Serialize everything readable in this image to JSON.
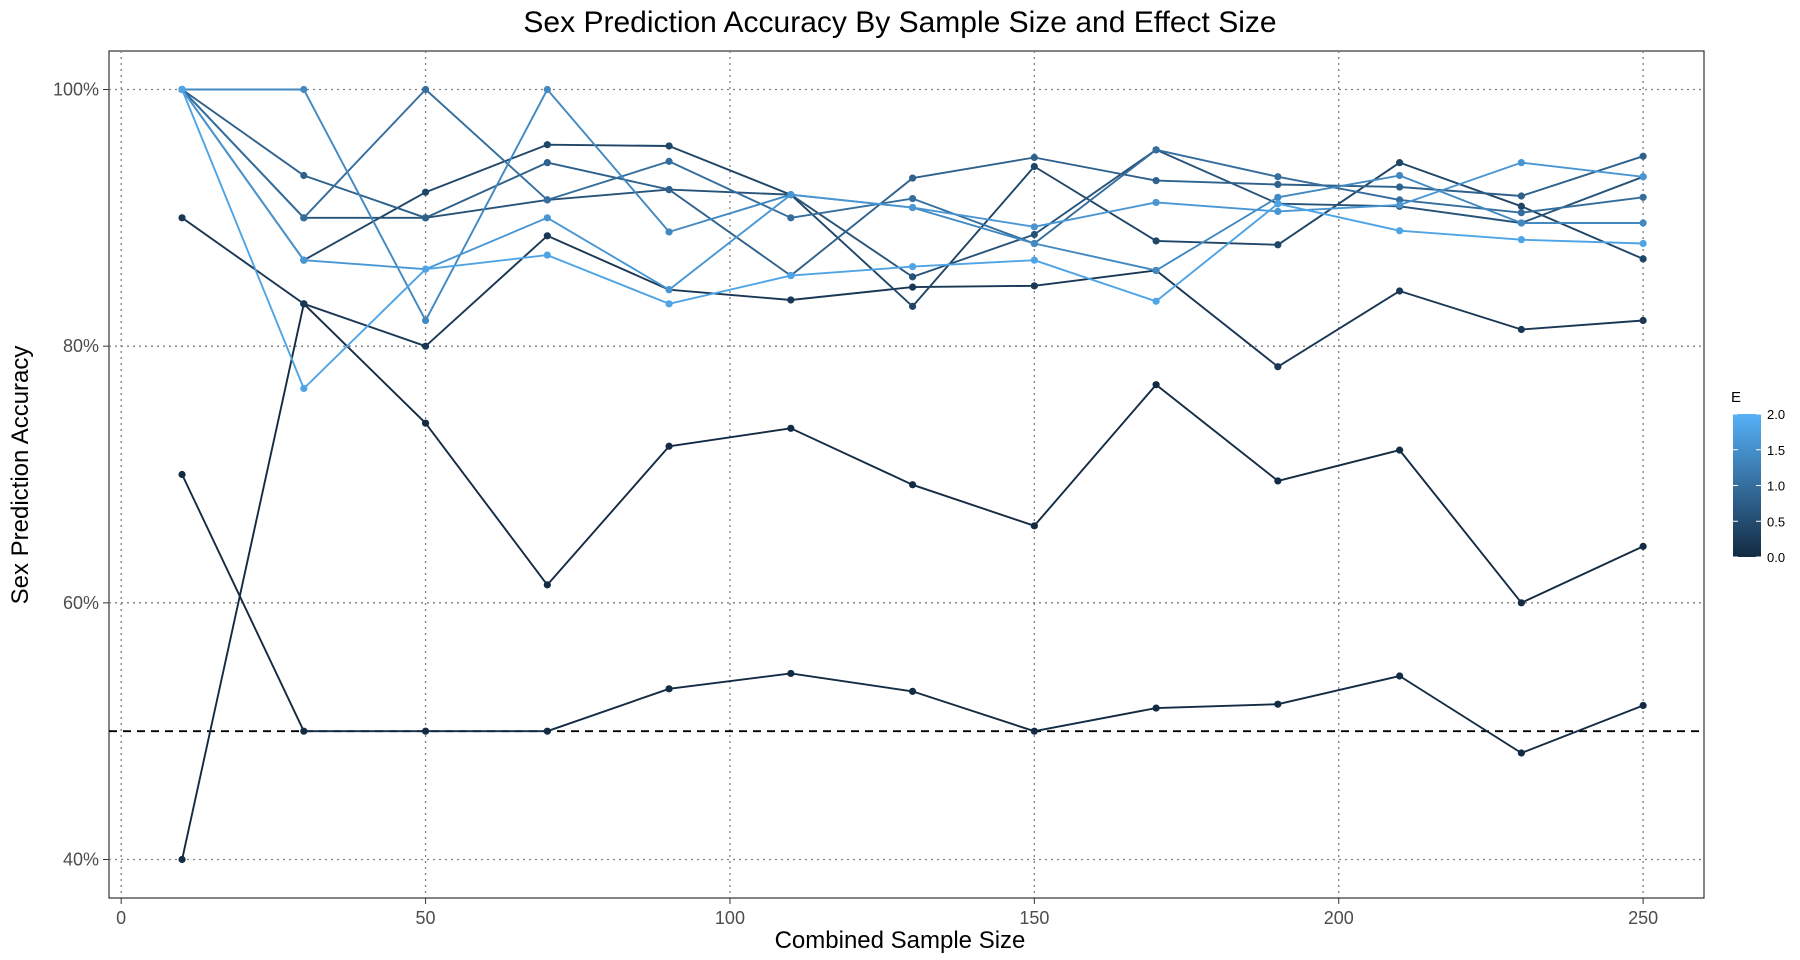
{
  "chart_data": {
    "type": "line",
    "title": "Sex Prediction Accuracy By Sample Size and Effect Size",
    "xlabel": "Combined Sample Size",
    "ylabel": "Sex Prediction Accuracy",
    "xlim": [
      -2,
      260
    ],
    "ylim": [
      37,
      103
    ],
    "xticks": [
      0,
      50,
      100,
      150,
      200,
      250
    ],
    "xtick_labels": [
      "0",
      "50",
      "100",
      "150",
      "200",
      "250"
    ],
    "yticks": [
      40,
      60,
      80,
      100
    ],
    "ytick_labels": [
      "40%",
      "60%",
      "80%",
      "100%"
    ],
    "grid": "dotted",
    "reference_line": 50,
    "legend": {
      "title": "E",
      "position": "right",
      "range": [
        0,
        2
      ],
      "ticks": [
        0,
        0.5,
        1,
        1.5,
        2
      ],
      "tick_labels": [
        "0.0",
        "0.5",
        "1.0",
        "1.5",
        "2.0"
      ],
      "color_low": "#132B43",
      "color_high": "#56B1F7"
    },
    "x": [
      10,
      30,
      50,
      70,
      90,
      110,
      130,
      150,
      170,
      190,
      210,
      230,
      250
    ],
    "series": [
      {
        "e": 0.0,
        "values": [
          40,
          83.3,
          74,
          61.4,
          72.2,
          73.6,
          69.2,
          66,
          77,
          69.5,
          71.9,
          60,
          64.4
        ]
      },
      {
        "e": 0.0,
        "values": [
          70,
          50,
          50,
          50,
          53.3,
          54.5,
          53.1,
          50,
          51.8,
          52.1,
          54.3,
          48.3,
          52
        ]
      },
      {
        "e": 0.2,
        "values": [
          90,
          83.3,
          80,
          88.6,
          84.4,
          83.6,
          84.6,
          84.7,
          85.9,
          78.4,
          84.3,
          81.3,
          82
        ]
      },
      {
        "e": 0.4,
        "values": [
          100,
          86.7,
          92,
          95.7,
          95.6,
          91.8,
          83.1,
          94,
          88.2,
          87.9,
          94.3,
          90.9,
          86.8
        ]
      },
      {
        "e": 0.6,
        "values": [
          100,
          90,
          90,
          91.4,
          92.2,
          91.8,
          85.4,
          88.7,
          95.3,
          91.1,
          90.9,
          89.6,
          93.2
        ]
      },
      {
        "e": 0.8,
        "values": [
          100,
          93.3,
          90,
          94.3,
          92.2,
          85.5,
          93.1,
          94.7,
          92.9,
          92.6,
          92.4,
          91.7,
          94.8
        ]
      },
      {
        "e": 1.0,
        "values": [
          100,
          90,
          100,
          91.4,
          94.4,
          90,
          91.5,
          88,
          95.3,
          93.2,
          91.4,
          90.4,
          91.6
        ]
      },
      {
        "e": 1.4,
        "values": [
          100,
          100,
          82,
          100,
          88.9,
          91.8,
          90.8,
          88,
          85.9,
          91.6,
          93.3,
          89.6,
          89.6
        ]
      },
      {
        "e": 1.6,
        "values": [
          100,
          86.7,
          86,
          90,
          84.4,
          91.8,
          90.8,
          89.3,
          91.2,
          90.5,
          91,
          94.3,
          93.2
        ]
      },
      {
        "e": 1.8,
        "values": [
          100,
          76.7,
          86,
          87.1,
          83.3,
          85.5,
          86.2,
          86.7,
          83.5,
          91.1,
          89,
          88.3,
          88
        ]
      }
    ]
  }
}
